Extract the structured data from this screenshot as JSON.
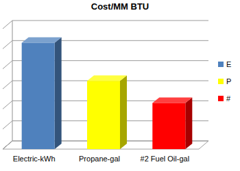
{
  "chart_data": {
    "type": "bar",
    "title": "Cost/MM BTU",
    "categories": [
      "Electric-kWh",
      "Propane-gal",
      "#2 Fuel Oil-gal"
    ],
    "series": [
      {
        "name": "E",
        "color": "#4f81bd",
        "values": [
          5.3,
          null,
          null
        ]
      },
      {
        "name": "P",
        "color": "#ffff00",
        "values": [
          null,
          3.4,
          null
        ]
      },
      {
        "name": "#",
        "color": "#ff0000",
        "values": [
          null,
          null,
          2.3
        ]
      }
    ],
    "ylim": [
      0,
      6
    ],
    "yticks": [
      0,
      1,
      2,
      3,
      4,
      5,
      6
    ],
    "grid": true,
    "legend": "right",
    "tick_labels": "x"
  }
}
